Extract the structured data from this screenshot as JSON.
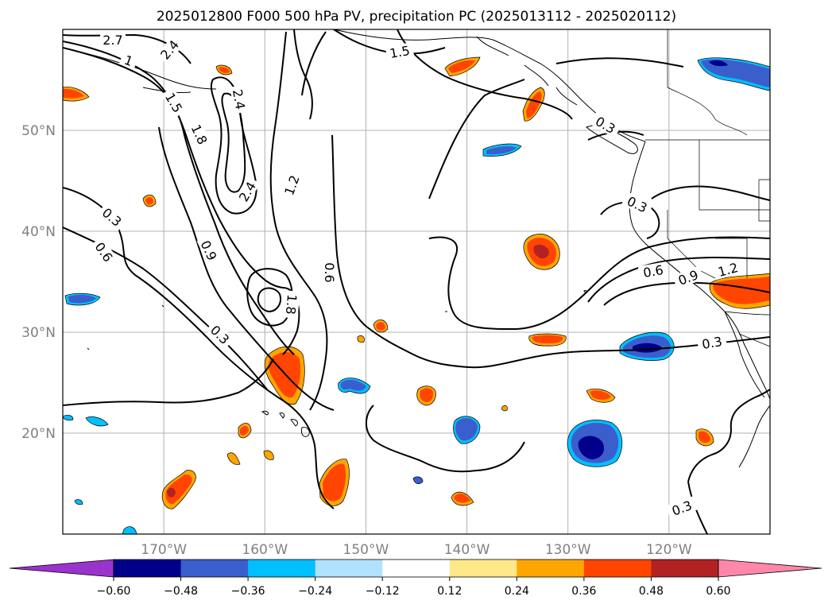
{
  "title": "2025012800 F000 500 hPa PV, precipitation PC (2025013112 - 2025020112)",
  "map": {
    "lon_ticks": [
      {
        "lon": -170,
        "label": "170°W"
      },
      {
        "lon": -160,
        "label": "160°W"
      },
      {
        "lon": -150,
        "label": "150°W"
      },
      {
        "lon": -140,
        "label": "140°W"
      },
      {
        "lon": -130,
        "label": "130°W"
      },
      {
        "lon": -120,
        "label": "120°W"
      }
    ],
    "lat_ticks": [
      {
        "lat": 20,
        "label": "20°N"
      },
      {
        "lat": 30,
        "label": "30°N"
      },
      {
        "lat": 40,
        "label": "40°N"
      },
      {
        "lat": 50,
        "label": "50°N"
      }
    ],
    "extent": {
      "lon": [
        -180,
        -110
      ],
      "lat": [
        10,
        60
      ]
    },
    "gridlines": true,
    "contour_variable": "500 hPa PV",
    "contour_color": "#000000",
    "contour_labels": [
      "2.7",
      "2.4",
      "1",
      "1.5",
      "1.5",
      "1.8",
      "2.4",
      "2.4",
      "1.2",
      "0.3",
      "0.6",
      "0.9",
      "0.3",
      "0.6",
      "1.8",
      "0.3",
      "0.6",
      "0.9",
      "1.2",
      "0.3",
      "0.3",
      "0.3"
    ],
    "shading_variable": "precipitation PC"
  },
  "colorbar": {
    "levels": [
      "-0.60",
      "-0.48",
      "-0.36",
      "-0.24",
      "-0.12",
      "0.12",
      "0.24",
      "0.36",
      "0.48",
      "0.60"
    ],
    "colors": [
      "#9933cc",
      "#00008b",
      "#3a5fcd",
      "#00bfff",
      "#b0e2ff",
      "#ffffff",
      "#ffe88a",
      "#ffa500",
      "#ff4500",
      "#b22222",
      "#ff88aa"
    ],
    "extend": "both"
  },
  "chart_data": {
    "type": "heatmap",
    "title": "2025012800 F000 500 hPa PV, precipitation PC (2025013112 - 2025020112)",
    "xlim": [
      -180,
      -110
    ],
    "ylim": [
      10,
      60
    ],
    "precip_anomalies": [
      {
        "lon": -157.5,
        "lat": 26.5,
        "value": 0.42
      },
      {
        "lon": -152.5,
        "lat": 15.0,
        "value": 0.4
      },
      {
        "lon": -132.5,
        "lat": 38.0,
        "value": 0.5
      },
      {
        "lon": -169.0,
        "lat": 14.0,
        "value": 0.38
      },
      {
        "lon": -133.0,
        "lat": 53.0,
        "value": 0.36
      },
      {
        "lon": -114.0,
        "lat": 34.0,
        "value": 0.4
      },
      {
        "lon": -129.0,
        "lat": 19.0,
        "value": -0.55
      },
      {
        "lon": -122.0,
        "lat": 28.5,
        "value": -0.48
      },
      {
        "lon": -115.0,
        "lat": 57.0,
        "value": -0.45
      },
      {
        "lon": -140.5,
        "lat": 20.5,
        "value": -0.38
      },
      {
        "lon": -137.0,
        "lat": 48.0,
        "value": -0.3
      },
      {
        "lon": -151.5,
        "lat": 24.5,
        "value": -0.3
      },
      {
        "lon": -176.0,
        "lat": 33.0,
        "value": -0.3
      },
      {
        "lon": -132.0,
        "lat": 29.0,
        "value": 0.36
      },
      {
        "lon": -144.0,
        "lat": 24.0,
        "value": 0.38
      },
      {
        "lon": -127.0,
        "lat": 23.5,
        "value": 0.38
      },
      {
        "lon": -140.0,
        "lat": 13.5,
        "value": 0.36
      },
      {
        "lon": -141.0,
        "lat": 57.5,
        "value": 0.36
      },
      {
        "lon": -178.0,
        "lat": 54.0,
        "value": 0.36
      },
      {
        "lon": -118.0,
        "lat": 20.0,
        "value": 0.36
      },
      {
        "lon": -162.0,
        "lat": 20.0,
        "value": 0.36
      },
      {
        "lon": -159.5,
        "lat": 17.5,
        "value": 0.3
      },
      {
        "lon": -148.5,
        "lat": 30.5,
        "value": 0.36
      },
      {
        "lon": -170.0,
        "lat": 42.5,
        "value": 0.36
      }
    ]
  }
}
